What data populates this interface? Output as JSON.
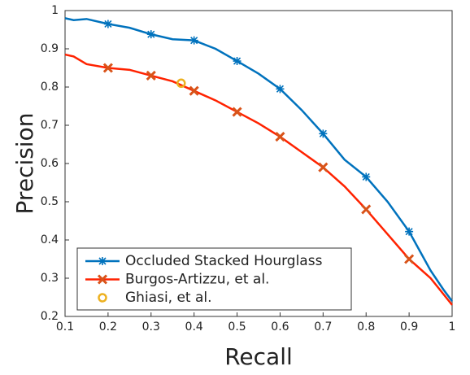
{
  "chart_data": {
    "type": "line",
    "xlabel": "Recall",
    "ylabel": "Precision",
    "xlim": [
      0.1,
      1
    ],
    "ylim": [
      0.2,
      1
    ],
    "xticks": [
      0.1,
      0.2,
      0.3,
      0.4,
      0.5,
      0.6,
      0.7,
      0.8,
      0.9,
      1
    ],
    "yticks": [
      0.2,
      0.3,
      0.4,
      0.5,
      0.6,
      0.7,
      0.8,
      0.9,
      1
    ],
    "legend": "lower left",
    "series": [
      {
        "name": "Occluded Stacked Hourglass",
        "color": "#0072bd",
        "marker": "*",
        "x": [
          0.1,
          0.12,
          0.15,
          0.2,
          0.25,
          0.3,
          0.35,
          0.4,
          0.45,
          0.5,
          0.55,
          0.6,
          0.65,
          0.7,
          0.75,
          0.8,
          0.85,
          0.9,
          0.95,
          0.98,
          1
        ],
        "values": [
          0.98,
          0.975,
          0.978,
          0.965,
          0.955,
          0.938,
          0.925,
          0.922,
          0.9,
          0.868,
          0.835,
          0.795,
          0.74,
          0.678,
          0.61,
          0.565,
          0.5,
          0.422,
          0.32,
          0.27,
          0.24
        ]
      },
      {
        "name": "Burgos-Artizzu, et al.",
        "color": "#ff2200",
        "marker_color": "#d95319",
        "marker": "x",
        "x": [
          0.1,
          0.12,
          0.15,
          0.2,
          0.25,
          0.3,
          0.35,
          0.4,
          0.45,
          0.5,
          0.55,
          0.6,
          0.65,
          0.7,
          0.75,
          0.8,
          0.85,
          0.9,
          0.95,
          1
        ],
        "values": [
          0.885,
          0.88,
          0.86,
          0.85,
          0.845,
          0.83,
          0.815,
          0.79,
          0.765,
          0.735,
          0.705,
          0.67,
          0.63,
          0.59,
          0.54,
          0.48,
          0.415,
          0.35,
          0.3,
          0.23
        ]
      },
      {
        "name": "Ghiasi, et al.",
        "color": "#edb120",
        "marker": "o",
        "x": [
          0.37
        ],
        "values": [
          0.81
        ]
      }
    ]
  }
}
